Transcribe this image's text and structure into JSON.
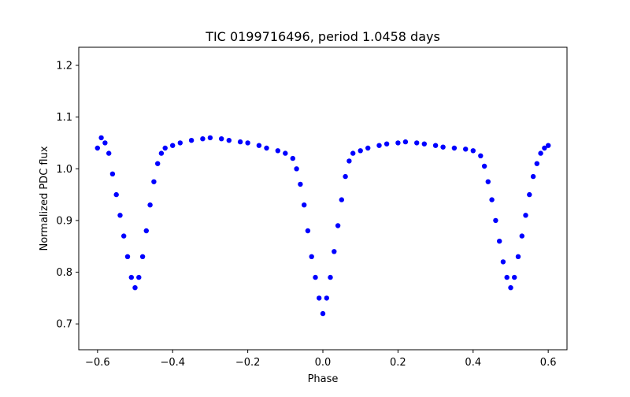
{
  "chart_data": {
    "type": "scatter",
    "title": "TIC 0199716496, period 1.0458 days",
    "xlabel": "Phase",
    "ylabel": "Normalized PDC flux",
    "xlim": [
      -0.65,
      0.65
    ],
    "ylim": [
      0.65,
      1.235
    ],
    "xticks": [
      -0.6,
      -0.4,
      -0.2,
      0.0,
      0.2,
      0.4,
      0.6
    ],
    "xtick_labels": [
      "−0.6",
      "−0.4",
      "−0.2",
      "0.0",
      "0.2",
      "0.4",
      "0.6"
    ],
    "yticks": [
      0.7,
      0.8,
      0.9,
      1.0,
      1.1,
      1.2
    ],
    "ytick_labels": [
      "0.7",
      "0.8",
      "0.9",
      "1.0",
      "1.1",
      "1.2"
    ],
    "grid": false,
    "legend": "none",
    "marker_color": "#0000ff",
    "series": [
      {
        "name": "",
        "x": [
          -0.6,
          -0.59,
          -0.58,
          -0.57,
          -0.56,
          -0.55,
          -0.54,
          -0.53,
          -0.52,
          -0.51,
          -0.5,
          -0.49,
          -0.48,
          -0.47,
          -0.46,
          -0.45,
          -0.44,
          -0.43,
          -0.42,
          -0.4,
          -0.38,
          -0.35,
          -0.32,
          -0.3,
          -0.27,
          -0.25,
          -0.22,
          -0.2,
          -0.17,
          -0.15,
          -0.12,
          -0.1,
          -0.08,
          -0.07,
          -0.06,
          -0.05,
          -0.04,
          -0.03,
          -0.02,
          -0.01,
          0.0,
          0.01,
          0.02,
          0.03,
          0.04,
          0.05,
          0.06,
          0.07,
          0.08,
          0.1,
          0.12,
          0.15,
          0.17,
          0.2,
          0.22,
          0.25,
          0.27,
          0.3,
          0.32,
          0.35,
          0.38,
          0.4,
          0.42,
          0.43,
          0.44,
          0.45,
          0.46,
          0.47,
          0.48,
          0.49,
          0.5,
          0.51,
          0.52,
          0.53,
          0.54,
          0.55,
          0.56,
          0.57,
          0.58,
          0.59,
          0.6
        ],
        "y": [
          1.04,
          1.06,
          1.05,
          1.03,
          0.99,
          0.95,
          0.91,
          0.87,
          0.83,
          0.79,
          0.77,
          0.79,
          0.83,
          0.88,
          0.93,
          0.975,
          1.01,
          1.03,
          1.04,
          1.045,
          1.05,
          1.055,
          1.058,
          1.06,
          1.058,
          1.055,
          1.052,
          1.05,
          1.045,
          1.04,
          1.035,
          1.03,
          1.02,
          1.0,
          0.97,
          0.93,
          0.88,
          0.83,
          0.79,
          0.75,
          0.72,
          0.75,
          0.79,
          0.84,
          0.89,
          0.94,
          0.985,
          1.015,
          1.03,
          1.035,
          1.04,
          1.045,
          1.048,
          1.05,
          1.052,
          1.05,
          1.048,
          1.045,
          1.042,
          1.04,
          1.038,
          1.035,
          1.025,
          1.005,
          0.975,
          0.94,
          0.9,
          0.86,
          0.82,
          0.79,
          0.77,
          0.79,
          0.83,
          0.87,
          0.91,
          0.95,
          0.985,
          1.01,
          1.03,
          1.04,
          1.045
        ]
      }
    ]
  }
}
